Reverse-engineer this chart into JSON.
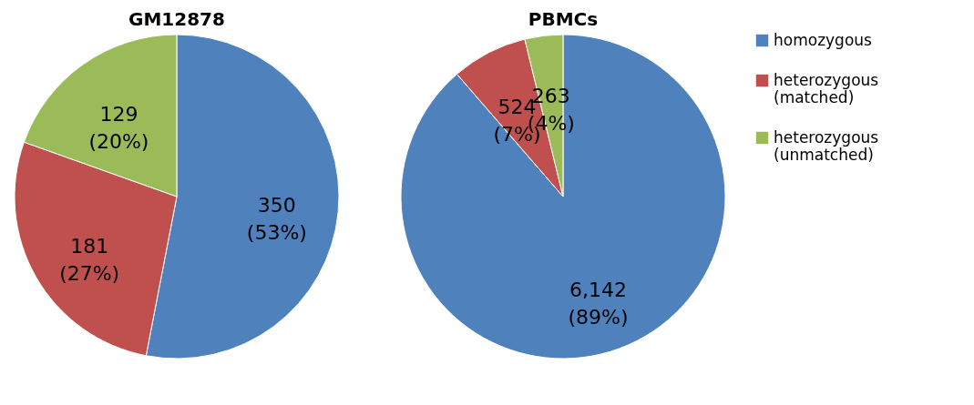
{
  "chart_data": [
    {
      "type": "pie",
      "title": "GM12878",
      "categories": [
        null,
        null,
        null
      ],
      "values": [
        350,
        181,
        129
      ],
      "colors": [
        "#4f81bd",
        "#c0504d",
        "#9bbb59"
      ],
      "value_labels": [
        "350 (53%)",
        "181 (27%)",
        "129 (20%)"
      ],
      "legend": false
    },
    {
      "type": "pie",
      "title": "PBMCs",
      "categories": [
        "homozygous",
        "heterozygous (matched)",
        "heterozygous (unmatched)"
      ],
      "values": [
        6142,
        524,
        263
      ],
      "colors": [
        "#4f81bd",
        "#c0504d",
        "#9bbb59"
      ],
      "value_labels": [
        "6,142 (89%)",
        "524 (7%)",
        "263 (4%)"
      ],
      "legend": "right"
    }
  ]
}
